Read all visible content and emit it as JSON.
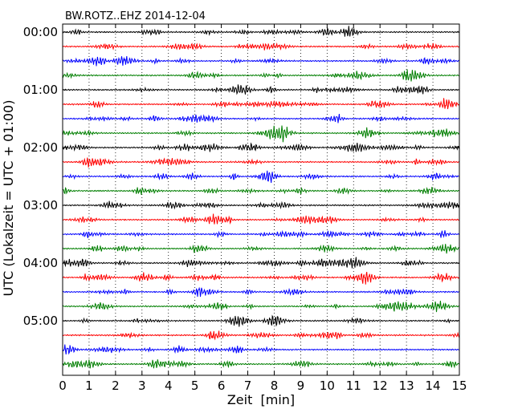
{
  "chart_data": {
    "type": "line",
    "title": "BW.ROTZ..EHZ 2014-12-04",
    "xlabel": "Zeit  [min]",
    "ylabel": "UTC (Lokalzeit = UTC + 01:00)",
    "xlim": [
      0,
      15
    ],
    "x_ticks": [
      "0",
      "1",
      "2",
      "3",
      "4",
      "5",
      "6",
      "7",
      "8",
      "9",
      "10",
      "11",
      "12",
      "13",
      "14",
      "15"
    ],
    "y_ticks": [
      "00:00",
      "01:00",
      "02:00",
      "03:00",
      "04:00",
      "05:00"
    ],
    "y_tick_trace_index": [
      0,
      4,
      8,
      12,
      16,
      20
    ],
    "minutes_per_trace": 15,
    "trace_count": 24,
    "trace_colors": [
      "#000000",
      "#ff0000",
      "#0000ff",
      "#007f00"
    ],
    "grid": "vertical dotted lines at each minute"
  }
}
